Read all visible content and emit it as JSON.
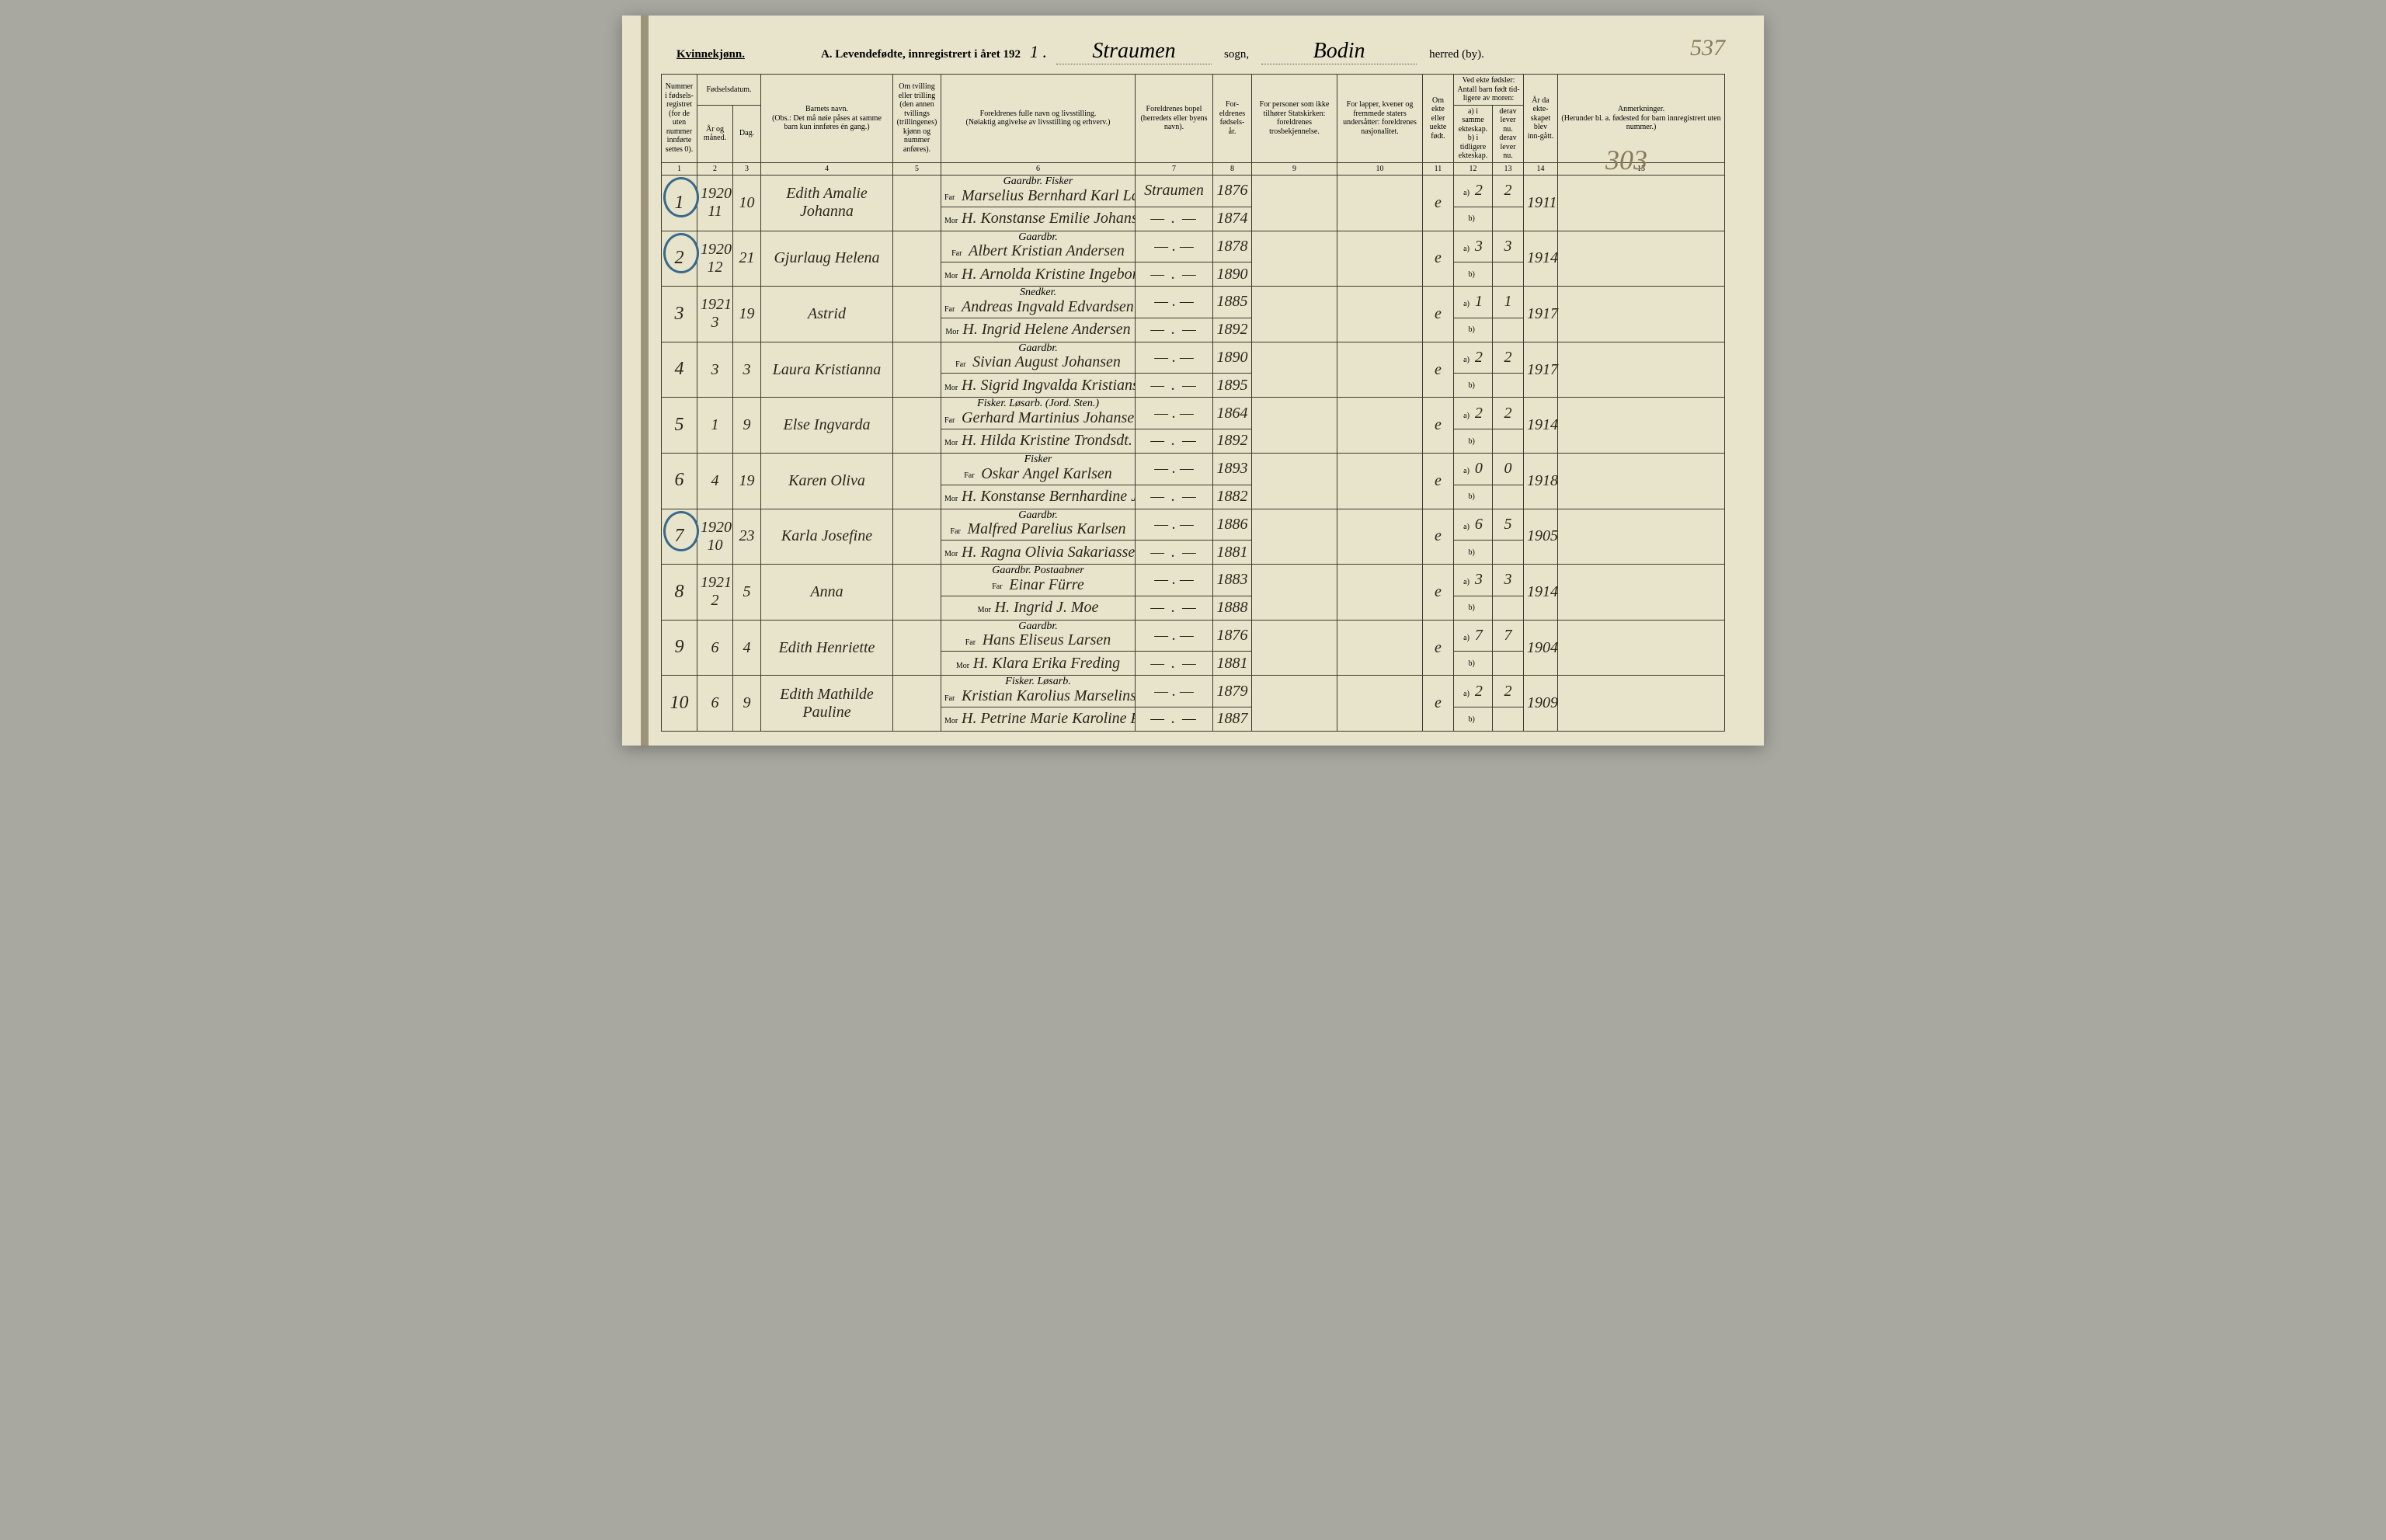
{
  "header": {
    "gender": "Kvinnekjønn.",
    "title_prefix": "A. Levendefødte, innregistrert i året 192",
    "year_suffix": "1 .",
    "sogn_script": "Straumen",
    "sogn_label": "sogn,",
    "herred_script": "Bodin",
    "herred_label": "herred (by).",
    "page_number_top": "537",
    "page_number_side": "303"
  },
  "columns": {
    "c1": "Nummer i fødsels-registret (for de uten nummer innførte settes 0).",
    "c2a": "Fødselsdatum.",
    "c2b": "År og måned.",
    "c3": "Dag.",
    "c4": "Barnets navn.",
    "c4_note": "(Obs.: Det må nøie påses at samme barn kun innføres én gang.)",
    "c5": "Om tvilling eller trilling (den annen tvillings (trillingenes) kjønn og nummer anføres).",
    "c6": "Foreldrenes fulle navn og livsstilling.",
    "c6_note": "(Nøiaktig angivelse av livsstilling og erhverv.)",
    "c7": "Foreldrenes bopel (herredets eller byens navn).",
    "c8": "For-eldrenes fødsels-år.",
    "c9": "For personer som ikke tilhører Statskirken: foreldrenes trosbekjennelse.",
    "c10": "For lapper, kvener og fremmede staters undersåtter: foreldrenes nasjonalitet.",
    "c11": "Om ekte eller uekte født.",
    "c12": "Ved ekte fødsler: Antall barn født tid-ligere av moren:",
    "c12a": "a) i samme ekteskap.",
    "c12b": "b) i tidligere ekteskap.",
    "c13": "derav lever nu.",
    "c13b": "derav lever nu.",
    "c14": "År da ekte-skapet blev inn-gått.",
    "c15": "Anmerkninger.",
    "c15_note": "(Herunder bl. a. fødested for barn innregistrert uten nummer.)"
  },
  "col_nums": [
    "1",
    "2",
    "3",
    "4",
    "5",
    "6",
    "7",
    "8",
    "9",
    "10",
    "11",
    "12",
    "13",
    "14",
    "15"
  ],
  "rows": [
    {
      "num": "1",
      "circled": true,
      "year_month": "1920 11",
      "day": "10",
      "child": "Edith Amalie Johanna",
      "far_occ": "Gaardbr. Fisker",
      "far": "Marselius Bernhard Karl Larsen",
      "mor": "H. Konstanse Emilie Johansen",
      "bopel": "Straumen",
      "bopel2": "— . —",
      "far_year": "1876",
      "mor_year": "1874",
      "ekte": "e",
      "a": "2",
      "lever_a": "2",
      "ekteskap_year": "1911"
    },
    {
      "num": "2",
      "circled": true,
      "year_month": "1920 12",
      "day": "21",
      "child": "Gjurlaug Helena",
      "far_occ": "Gaardbr.",
      "far": "Albert Kristian Andersen",
      "mor": "H. Arnolda Kristine Ingeborg Jensdt.",
      "bopel": "— . —",
      "bopel2": "— . —",
      "far_year": "1878",
      "mor_year": "1890",
      "ekte": "e",
      "a": "3",
      "lever_a": "3",
      "ekteskap_year": "1914"
    },
    {
      "num": "3",
      "circled": false,
      "year_month": "1921 3",
      "day": "19",
      "child": "Astrid",
      "far_occ": "Snedker.",
      "far": "Andreas Ingvald Edvardsen",
      "mor": "H. Ingrid Helene Andersen",
      "bopel": "— . —",
      "bopel2": "— . —",
      "far_year": "1885",
      "mor_year": "1892",
      "ekte": "e",
      "a": "1",
      "lever_a": "1",
      "ekteskap_year": "1917"
    },
    {
      "num": "4",
      "circled": false,
      "year_month": "3",
      "day": "3",
      "child": "Laura Kristianna",
      "far_occ": "Gaardbr.",
      "far": "Sivian August Johansen",
      "mor": "H. Sigrid Ingvalda Kristiansdt.",
      "bopel": "— . —",
      "bopel2": "— . —",
      "far_year": "1890",
      "mor_year": "1895",
      "ekte": "e",
      "a": "2",
      "lever_a": "2",
      "ekteskap_year": "1917"
    },
    {
      "num": "5",
      "circled": false,
      "year_month": "1",
      "day": "9",
      "child": "Else Ingvarda",
      "far_occ": "Fisker. Løsarb. (Jord. Sten.)",
      "far": "Gerhard Martinius Johansen",
      "mor": "H. Hilda Kristine Trondsdt.",
      "bopel": "— . —",
      "bopel2": "— . —",
      "far_year": "1864",
      "mor_year": "1892",
      "ekte": "e",
      "a": "2",
      "lever_a": "2",
      "ekteskap_year": "1914"
    },
    {
      "num": "6",
      "circled": false,
      "year_month": "4",
      "day": "19",
      "child": "Karen Oliva",
      "far_occ": "Fisker",
      "far": "Oskar Angel Karlsen",
      "mor": "H. Konstanse Bernhardine Julie Andreassen",
      "bopel": "— . —",
      "bopel2": "— . —",
      "far_year": "1893",
      "mor_year": "1882",
      "ekte": "e",
      "a": "0",
      "lever_a": "0",
      "ekteskap_year": "1918"
    },
    {
      "num": "7",
      "circled": true,
      "year_month": "1920 10",
      "day": "23",
      "child": "Karla Josefine",
      "far_occ": "Gaardbr.",
      "far": "Malfred Parelius Karlsen",
      "mor": "H. Ragna Olivia Sakariassen",
      "bopel": "— . —",
      "bopel2": "— . —",
      "far_year": "1886",
      "mor_year": "1881",
      "ekte": "e",
      "a": "6",
      "lever_a": "5",
      "ekteskap_year": "1905"
    },
    {
      "num": "8",
      "circled": false,
      "year_month": "1921 2",
      "day": "5",
      "child": "Anna",
      "far_occ": "Gaardbr. Postaabner",
      "far": "Einar Fürre",
      "mor": "H. Ingrid J. Moe",
      "bopel": "— . —",
      "bopel2": "— . —",
      "far_year": "1883",
      "mor_year": "1888",
      "ekte": "e",
      "a": "3",
      "lever_a": "3",
      "ekteskap_year": "1914"
    },
    {
      "num": "9",
      "circled": false,
      "year_month": "6",
      "day": "4",
      "child": "Edith Henriette",
      "far_occ": "Gaardbr.",
      "far": "Hans Eliseus Larsen",
      "mor": "H. Klara Erika Freding",
      "bopel": "— . —",
      "bopel2": "— . —",
      "far_year": "1876",
      "mor_year": "1881",
      "ekte": "e",
      "a": "7",
      "lever_a": "7",
      "ekteskap_year": "1904"
    },
    {
      "num": "10",
      "circled": false,
      "year_month": "6",
      "day": "9",
      "child": "Edith Mathilde Pauline",
      "far_occ": "Fisker. Løsarb.",
      "far": "Kristian Karolius Marselinsen",
      "mor": "H. Petrine Marie Karoline Pedersen",
      "bopel": "— . —",
      "bopel2": "— . —",
      "far_year": "1879",
      "mor_year": "1887",
      "ekte": "e",
      "a": "2",
      "lever_a": "2",
      "ekteskap_year": "1909"
    }
  ],
  "labels": {
    "far": "Far",
    "mor": "Mor",
    "a": "a)",
    "b": "b)"
  }
}
